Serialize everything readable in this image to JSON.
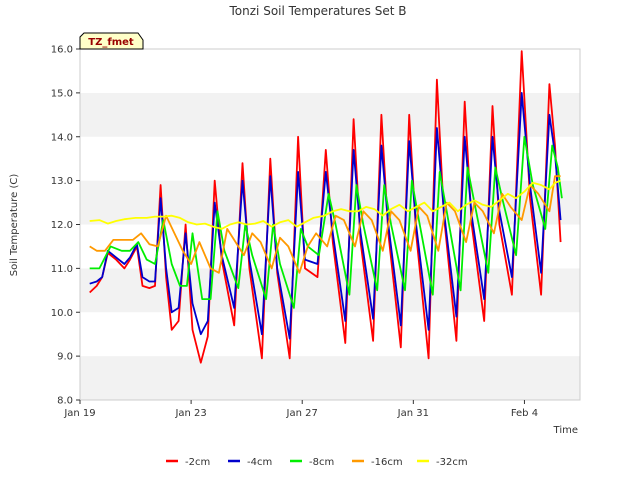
{
  "chart_data": {
    "type": "line",
    "title": "Tonzi Soil Temperatures Set B",
    "xlabel": "Time",
    "ylabel": "Soil Temperature (C)",
    "badge": "TZ_fmet",
    "ylim": [
      8.0,
      16.0
    ],
    "yticks": [
      "8.0",
      "9.0",
      "10.0",
      "11.0",
      "12.0",
      "13.0",
      "14.0",
      "15.0",
      "16.0"
    ],
    "xlim": [
      "2024-01-19",
      "2024-02-06"
    ],
    "xticks": [
      {
        "label": "Jan 19",
        "day": 0
      },
      {
        "label": "Jan 23",
        "day": 4
      },
      {
        "label": "Jan 27",
        "day": 8
      },
      {
        "label": "Jan 31",
        "day": 12
      },
      {
        "label": "Feb 4",
        "day": 16
      }
    ],
    "grid": "horizontal bands",
    "legend_position": "bottom",
    "series": [
      {
        "name": "-2cm",
        "color": "#ff0000",
        "points": [
          [
            0.35,
            10.45
          ],
          [
            0.6,
            10.6
          ],
          [
            0.8,
            10.8
          ],
          [
            1.0,
            11.35
          ],
          [
            1.3,
            11.2
          ],
          [
            1.6,
            11.0
          ],
          [
            1.8,
            11.2
          ],
          [
            2.05,
            11.5
          ],
          [
            2.25,
            10.6
          ],
          [
            2.5,
            10.55
          ],
          [
            2.7,
            10.6
          ],
          [
            2.9,
            12.9
          ],
          [
            3.1,
            10.8
          ],
          [
            3.3,
            9.6
          ],
          [
            3.55,
            9.8
          ],
          [
            3.8,
            12.0
          ],
          [
            4.05,
            9.6
          ],
          [
            4.35,
            8.85
          ],
          [
            4.6,
            9.45
          ],
          [
            4.85,
            13.0
          ],
          [
            5.1,
            11.2
          ],
          [
            5.55,
            9.7
          ],
          [
            5.85,
            13.4
          ],
          [
            6.1,
            11.0
          ],
          [
            6.55,
            8.95
          ],
          [
            6.85,
            13.5
          ],
          [
            7.1,
            10.9
          ],
          [
            7.55,
            8.95
          ],
          [
            7.85,
            14.0
          ],
          [
            8.1,
            11.0
          ],
          [
            8.55,
            10.8
          ],
          [
            8.85,
            13.7
          ],
          [
            9.1,
            11.6
          ],
          [
            9.55,
            9.3
          ],
          [
            9.85,
            14.4
          ],
          [
            10.1,
            11.6
          ],
          [
            10.55,
            9.35
          ],
          [
            10.85,
            14.5
          ],
          [
            11.1,
            11.8
          ],
          [
            11.55,
            9.2
          ],
          [
            11.85,
            14.5
          ],
          [
            12.1,
            11.8
          ],
          [
            12.55,
            8.95
          ],
          [
            12.85,
            15.3
          ],
          [
            13.1,
            12.2
          ],
          [
            13.55,
            9.35
          ],
          [
            13.85,
            14.8
          ],
          [
            14.1,
            12.0
          ],
          [
            14.55,
            9.8
          ],
          [
            14.85,
            14.7
          ],
          [
            15.1,
            12.0
          ],
          [
            15.55,
            10.4
          ],
          [
            15.9,
            15.95
          ],
          [
            16.2,
            12.6
          ],
          [
            16.6,
            10.4
          ],
          [
            16.9,
            15.2
          ],
          [
            17.1,
            13.8
          ],
          [
            17.3,
            11.6
          ]
        ]
      },
      {
        "name": "-4cm",
        "color": "#0000cc",
        "points": [
          [
            0.35,
            10.65
          ],
          [
            0.6,
            10.7
          ],
          [
            0.8,
            10.8
          ],
          [
            1.0,
            11.4
          ],
          [
            1.3,
            11.25
          ],
          [
            1.6,
            11.1
          ],
          [
            1.8,
            11.25
          ],
          [
            2.05,
            11.55
          ],
          [
            2.25,
            10.8
          ],
          [
            2.5,
            10.7
          ],
          [
            2.7,
            10.7
          ],
          [
            2.9,
            12.6
          ],
          [
            3.1,
            11.0
          ],
          [
            3.3,
            10.0
          ],
          [
            3.55,
            10.1
          ],
          [
            3.8,
            11.8
          ],
          [
            4.05,
            10.2
          ],
          [
            4.35,
            9.5
          ],
          [
            4.6,
            9.8
          ],
          [
            4.85,
            12.5
          ],
          [
            5.1,
            11.3
          ],
          [
            5.55,
            10.1
          ],
          [
            5.85,
            13.0
          ],
          [
            6.1,
            11.2
          ],
          [
            6.55,
            9.5
          ],
          [
            6.85,
            13.1
          ],
          [
            7.1,
            11.0
          ],
          [
            7.55,
            9.4
          ],
          [
            7.85,
            13.2
          ],
          [
            8.1,
            11.2
          ],
          [
            8.55,
            11.1
          ],
          [
            8.85,
            13.2
          ],
          [
            9.1,
            11.8
          ],
          [
            9.55,
            9.8
          ],
          [
            9.85,
            13.7
          ],
          [
            10.1,
            11.8
          ],
          [
            10.55,
            9.85
          ],
          [
            10.85,
            13.8
          ],
          [
            11.1,
            12.0
          ],
          [
            11.55,
            9.7
          ],
          [
            11.85,
            13.9
          ],
          [
            12.1,
            12.0
          ],
          [
            12.55,
            9.6
          ],
          [
            12.85,
            14.2
          ],
          [
            13.1,
            12.3
          ],
          [
            13.55,
            9.9
          ],
          [
            13.85,
            14.0
          ],
          [
            14.1,
            12.2
          ],
          [
            14.55,
            10.3
          ],
          [
            14.85,
            14.0
          ],
          [
            15.1,
            12.3
          ],
          [
            15.55,
            10.8
          ],
          [
            15.9,
            15.0
          ],
          [
            16.2,
            12.9
          ],
          [
            16.6,
            10.9
          ],
          [
            16.9,
            14.5
          ],
          [
            17.1,
            13.6
          ],
          [
            17.3,
            12.1
          ]
        ]
      },
      {
        "name": "-8cm",
        "color": "#00ee00",
        "points": [
          [
            0.35,
            11.0
          ],
          [
            0.7,
            11.0
          ],
          [
            1.1,
            11.5
          ],
          [
            1.5,
            11.4
          ],
          [
            1.8,
            11.4
          ],
          [
            2.1,
            11.6
          ],
          [
            2.4,
            11.2
          ],
          [
            2.7,
            11.1
          ],
          [
            3.0,
            12.1
          ],
          [
            3.3,
            11.1
          ],
          [
            3.6,
            10.6
          ],
          [
            3.85,
            10.6
          ],
          [
            4.05,
            11.8
          ],
          [
            4.4,
            10.3
          ],
          [
            4.7,
            10.3
          ],
          [
            4.95,
            12.3
          ],
          [
            5.2,
            11.4
          ],
          [
            5.7,
            10.55
          ],
          [
            5.95,
            12.0
          ],
          [
            6.2,
            11.3
          ],
          [
            6.7,
            10.3
          ],
          [
            6.95,
            12.0
          ],
          [
            7.2,
            11.1
          ],
          [
            7.7,
            10.1
          ],
          [
            7.95,
            11.9
          ],
          [
            8.2,
            11.5
          ],
          [
            8.6,
            11.3
          ],
          [
            8.95,
            12.7
          ],
          [
            9.2,
            12.0
          ],
          [
            9.7,
            10.4
          ],
          [
            9.95,
            12.9
          ],
          [
            10.2,
            12.0
          ],
          [
            10.7,
            10.5
          ],
          [
            10.95,
            12.9
          ],
          [
            11.2,
            12.0
          ],
          [
            11.7,
            10.5
          ],
          [
            11.95,
            13.0
          ],
          [
            12.2,
            12.1
          ],
          [
            12.7,
            10.4
          ],
          [
            12.95,
            13.2
          ],
          [
            13.2,
            12.3
          ],
          [
            13.7,
            10.5
          ],
          [
            13.95,
            13.3
          ],
          [
            14.2,
            12.5
          ],
          [
            14.7,
            10.9
          ],
          [
            14.95,
            13.3
          ],
          [
            15.2,
            12.6
          ],
          [
            15.7,
            11.3
          ],
          [
            16.0,
            14.0
          ],
          [
            16.3,
            12.9
          ],
          [
            16.75,
            11.9
          ],
          [
            17.0,
            13.8
          ],
          [
            17.2,
            13.3
          ],
          [
            17.35,
            12.6
          ]
        ]
      },
      {
        "name": "-16cm",
        "color": "#ff9900",
        "points": [
          [
            0.35,
            11.5
          ],
          [
            0.6,
            11.4
          ],
          [
            0.9,
            11.4
          ],
          [
            1.2,
            11.65
          ],
          [
            1.6,
            11.65
          ],
          [
            1.9,
            11.65
          ],
          [
            2.2,
            11.8
          ],
          [
            2.5,
            11.55
          ],
          [
            2.8,
            11.5
          ],
          [
            3.1,
            12.2
          ],
          [
            3.4,
            11.8
          ],
          [
            3.7,
            11.4
          ],
          [
            4.0,
            11.1
          ],
          [
            4.3,
            11.6
          ],
          [
            4.7,
            11.0
          ],
          [
            5.0,
            10.9
          ],
          [
            5.3,
            11.9
          ],
          [
            5.6,
            11.6
          ],
          [
            5.9,
            11.3
          ],
          [
            6.2,
            11.8
          ],
          [
            6.5,
            11.6
          ],
          [
            6.9,
            11.0
          ],
          [
            7.2,
            11.7
          ],
          [
            7.5,
            11.5
          ],
          [
            7.9,
            10.9
          ],
          [
            8.2,
            11.5
          ],
          [
            8.5,
            11.8
          ],
          [
            8.9,
            11.5
          ],
          [
            9.2,
            12.2
          ],
          [
            9.5,
            12.1
          ],
          [
            9.9,
            11.5
          ],
          [
            10.2,
            12.3
          ],
          [
            10.5,
            12.1
          ],
          [
            10.9,
            11.4
          ],
          [
            11.2,
            12.3
          ],
          [
            11.5,
            12.1
          ],
          [
            11.9,
            11.4
          ],
          [
            12.2,
            12.4
          ],
          [
            12.5,
            12.2
          ],
          [
            12.9,
            11.4
          ],
          [
            13.2,
            12.5
          ],
          [
            13.5,
            12.3
          ],
          [
            13.9,
            11.6
          ],
          [
            14.2,
            12.5
          ],
          [
            14.5,
            12.3
          ],
          [
            14.9,
            11.8
          ],
          [
            15.2,
            12.7
          ],
          [
            15.5,
            12.4
          ],
          [
            15.9,
            12.1
          ],
          [
            16.2,
            12.9
          ],
          [
            16.5,
            12.7
          ],
          [
            16.9,
            12.3
          ],
          [
            17.1,
            13.1
          ],
          [
            17.3,
            13.1
          ]
        ]
      },
      {
        "name": "-32cm",
        "color": "#ffff00",
        "points": [
          [
            0.35,
            12.08
          ],
          [
            0.7,
            12.1
          ],
          [
            1.0,
            12.02
          ],
          [
            1.3,
            12.08
          ],
          [
            1.6,
            12.12
          ],
          [
            2.0,
            12.15
          ],
          [
            2.4,
            12.15
          ],
          [
            2.7,
            12.18
          ],
          [
            3.0,
            12.18
          ],
          [
            3.3,
            12.2
          ],
          [
            3.6,
            12.15
          ],
          [
            3.9,
            12.05
          ],
          [
            4.2,
            12.0
          ],
          [
            4.5,
            12.02
          ],
          [
            4.8,
            11.95
          ],
          [
            5.1,
            11.9
          ],
          [
            5.4,
            12.0
          ],
          [
            5.7,
            12.05
          ],
          [
            6.0,
            12.0
          ],
          [
            6.3,
            12.02
          ],
          [
            6.6,
            12.08
          ],
          [
            6.9,
            11.95
          ],
          [
            7.2,
            12.05
          ],
          [
            7.5,
            12.1
          ],
          [
            7.8,
            11.95
          ],
          [
            8.1,
            12.05
          ],
          [
            8.4,
            12.15
          ],
          [
            8.8,
            12.2
          ],
          [
            9.1,
            12.3
          ],
          [
            9.4,
            12.35
          ],
          [
            9.7,
            12.3
          ],
          [
            10.0,
            12.3
          ],
          [
            10.3,
            12.4
          ],
          [
            10.6,
            12.35
          ],
          [
            10.9,
            12.2
          ],
          [
            11.2,
            12.35
          ],
          [
            11.5,
            12.45
          ],
          [
            11.8,
            12.3
          ],
          [
            12.1,
            12.4
          ],
          [
            12.4,
            12.5
          ],
          [
            12.7,
            12.3
          ],
          [
            13.0,
            12.4
          ],
          [
            13.3,
            12.5
          ],
          [
            13.6,
            12.3
          ],
          [
            13.9,
            12.45
          ],
          [
            14.2,
            12.55
          ],
          [
            14.5,
            12.45
          ],
          [
            14.8,
            12.4
          ],
          [
            15.1,
            12.55
          ],
          [
            15.4,
            12.7
          ],
          [
            15.7,
            12.6
          ],
          [
            16.0,
            12.75
          ],
          [
            16.3,
            12.95
          ],
          [
            16.6,
            12.9
          ],
          [
            16.9,
            12.8
          ],
          [
            17.1,
            12.95
          ],
          [
            17.3,
            13.0
          ]
        ]
      }
    ]
  }
}
